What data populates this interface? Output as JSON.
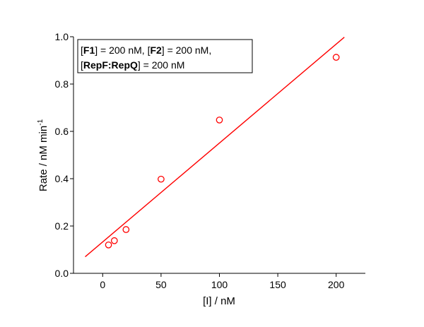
{
  "chart_data": {
    "type": "scatter",
    "xlabel": "[I] / nM",
    "ylabel_main": "Rate / nM min",
    "ylabel_sup": "-1",
    "xlim": [
      -25,
      225
    ],
    "ylim": [
      0,
      1.0
    ],
    "xticks": [
      0,
      50,
      100,
      150,
      200
    ],
    "yticks": [
      0.0,
      0.2,
      0.4,
      0.6,
      0.8,
      1.0
    ],
    "ytick_labels": [
      "0.0",
      "0.2",
      "0.4",
      "0.6",
      "0.8",
      "1.0"
    ],
    "grid": false,
    "series": [
      {
        "marker": "open-circle",
        "color": "#ff0000",
        "x": [
          5,
          10,
          20,
          50,
          100,
          200
        ],
        "y": [
          0.12,
          0.138,
          0.185,
          0.398,
          0.648,
          0.913
        ]
      }
    ],
    "fit_line": {
      "color": "#ff0000",
      "x": [
        -15,
        207
      ],
      "y": [
        0.07,
        0.998
      ]
    },
    "annotation": {
      "line1": {
        "b1": "[",
        "t1": "F1",
        "a1": "] = 200 nM, ",
        "b2": "[",
        "t2": "F2",
        "a2": "] = 200 nM,"
      },
      "line2": {
        "b1": "[",
        "t1": "RepF:RepQ",
        "a1": "] = 200 nM"
      }
    }
  }
}
